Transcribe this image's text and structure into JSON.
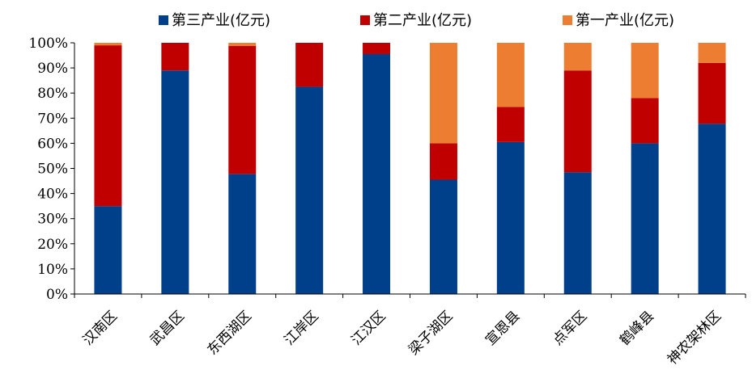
{
  "chart_data": {
    "type": "bar",
    "stacked": true,
    "normalized": true,
    "categories": [
      "汉南区",
      "武昌区",
      "东西湖区",
      "江岸区",
      "江汉区",
      "梁子湖区",
      "宣恩县",
      "点军区",
      "鹤峰县",
      "神农架林区"
    ],
    "series": [
      {
        "name": "第三产业(亿元)",
        "color": "#003F8A",
        "values": [
          35,
          89,
          47.8,
          82.5,
          95.5,
          45.5,
          60.5,
          48.5,
          60,
          67.8
        ]
      },
      {
        "name": "第二产业(亿元)",
        "color": "#C00000",
        "values": [
          64,
          11,
          51,
          17.5,
          4.5,
          14.5,
          14,
          40.5,
          18,
          24.2
        ]
      },
      {
        "name": "第一产业(亿元)",
        "color": "#ED7D31",
        "values": [
          1,
          0,
          1.2,
          0,
          0,
          40,
          25.5,
          11,
          22,
          8
        ]
      }
    ],
    "legend_order": [
      0,
      1,
      2
    ],
    "legend_position": "top",
    "ylim": [
      0,
      100
    ],
    "yticks": [
      "0%",
      "10%",
      "20%",
      "30%",
      "40%",
      "50%",
      "60%",
      "70%",
      "80%",
      "90%",
      "100%"
    ],
    "grid": false
  }
}
